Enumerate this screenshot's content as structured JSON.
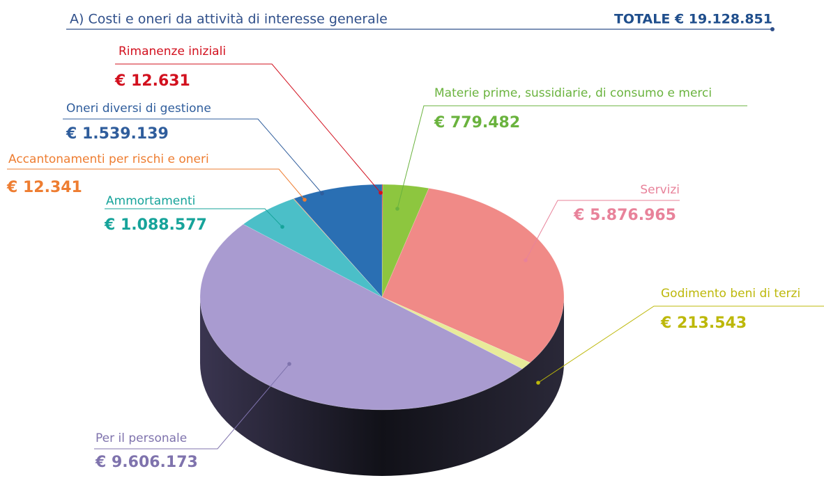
{
  "chart_data": {
    "type": "pie",
    "title": "A) Costi e oneri da attività di interesse generale",
    "total": "TOTALE € 19.128.851",
    "categories": [
      "Rimanenze iniziali",
      "Materie prime, sussidiarie, di consumo e merci",
      "Servizi",
      "Godimento beni di terzi",
      "Per il personale",
      "Ammortamenti",
      "Accantonamenti per rischi e oneri",
      "Oneri diversi di gestione"
    ],
    "values": [
      12631,
      779482,
      5876965,
      213543,
      9606173,
      1088577,
      12341,
      1539139
    ],
    "value_labels": [
      "€ 12.631",
      "€ 779.482",
      "€ 5.876.965",
      "€ 213.543",
      "€ 9.606.173",
      "€ 1.088.577",
      "€ 12.341",
      "€ 1.539.139"
    ],
    "colors": [
      "#e30613",
      "#8dc63f",
      "#f08a87",
      "#e8eb9a",
      "#a99bd0",
      "#4bbfc8",
      "#f08c3c",
      "#2a6fb3"
    ],
    "label_colors": [
      "#d2101e",
      "#6ab33e",
      "#e8829a",
      "#bdb80a",
      "#7f73ad",
      "#16a39a",
      "#ee7d31",
      "#2f5d9c"
    ]
  }
}
